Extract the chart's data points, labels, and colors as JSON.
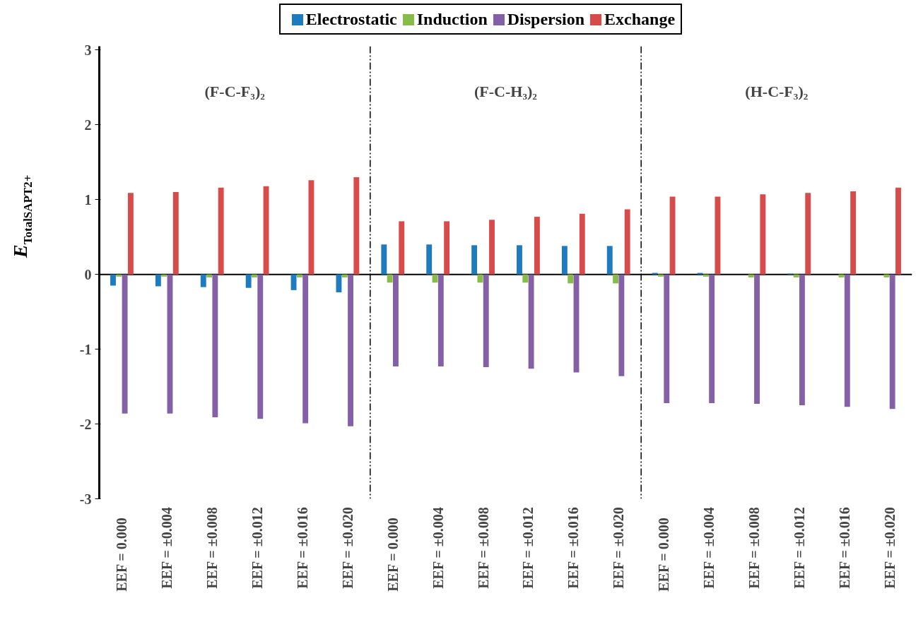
{
  "chart_data": {
    "type": "bar",
    "ylabel": "E$_{TotalSAPT2+}$",
    "categories": [
      "EEF =    0.000",
      "EEF = ±0.004",
      "EEF = ±0.008",
      "EEF = ±0.012",
      "EEF = ±0.016",
      "EEF = ±0.020",
      "EEF =    0.000",
      "EEF = ±0.004",
      "EEF = ±0.008",
      "EEF = ±0.012",
      "EEF = ±0.016",
      "EEF = ±0.020",
      "EEF =    0.000",
      "EEF = ±0.004",
      "EEF = ±0.008",
      "EEF = ±0.012",
      "EEF = ±0.016",
      "EEF = ±0.020"
    ],
    "series": [
      {
        "name": "Electrostatic",
        "color": "#1f7bbf",
        "values": [
          -0.15,
          -0.16,
          -0.17,
          -0.18,
          -0.21,
          -0.24,
          0.4,
          0.4,
          0.39,
          0.39,
          0.38,
          0.38,
          0.02,
          0.02,
          0.0,
          0.01,
          0.0,
          0.0
        ]
      },
      {
        "name": "Induction",
        "color": "#86bd4a",
        "values": [
          -0.03,
          -0.03,
          -0.04,
          -0.04,
          -0.04,
          -0.04,
          -0.11,
          -0.11,
          -0.11,
          -0.11,
          -0.12,
          -0.12,
          -0.03,
          -0.03,
          -0.04,
          -0.04,
          -0.04,
          -0.04
        ]
      },
      {
        "name": "Dispersion",
        "color": "#8461a6",
        "values": [
          -1.86,
          -1.86,
          -1.91,
          -1.93,
          -1.99,
          -2.03,
          -1.23,
          -1.23,
          -1.24,
          -1.26,
          -1.31,
          -1.36,
          -1.72,
          -1.72,
          -1.73,
          -1.75,
          -1.77,
          -1.8
        ]
      },
      {
        "name": "Exchange",
        "color": "#d94b4b",
        "values": [
          1.09,
          1.1,
          1.16,
          1.18,
          1.26,
          1.3,
          0.71,
          0.71,
          0.73,
          0.77,
          0.81,
          0.87,
          1.04,
          1.04,
          1.07,
          1.09,
          1.11,
          1.16
        ]
      }
    ],
    "ylim": [
      -3,
      3.05
    ],
    "yticks": [
      -3,
      -2,
      -1,
      0,
      1,
      2,
      3
    ],
    "ref_lines": [
      {
        "axis": "y",
        "value": 0,
        "color": "#000000",
        "line_style": "solid"
      }
    ],
    "annotations": [
      "(F-C-F₃)₂",
      "(F-C-H₃)₂",
      "(H-C-F₃)₂"
    ],
    "legend": "top",
    "grid": false
  }
}
